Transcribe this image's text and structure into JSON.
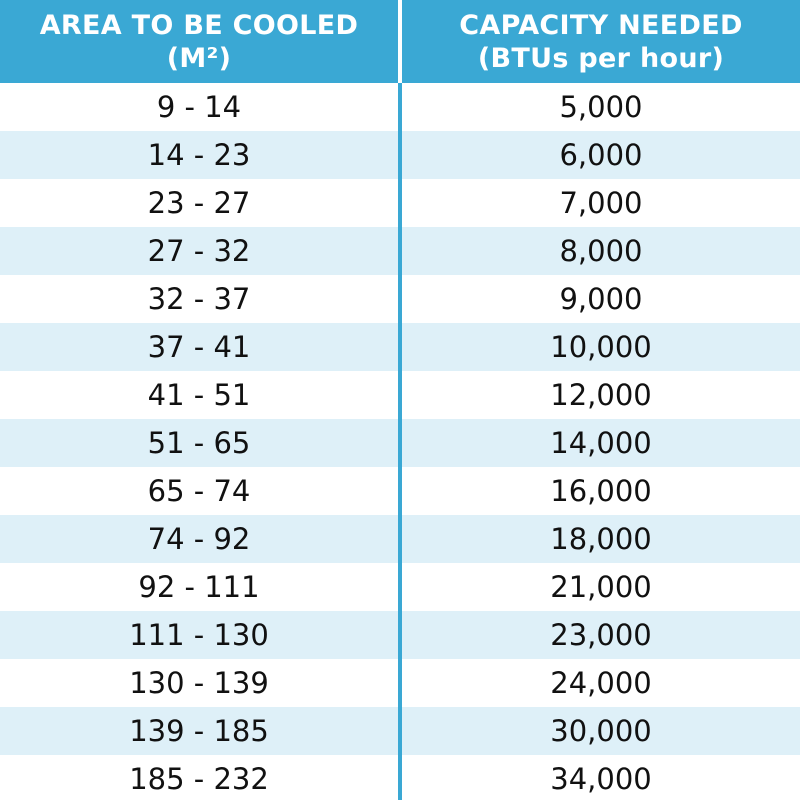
{
  "colors": {
    "accent": "#3aa8d4",
    "stripe": "#def0f8",
    "background": "#ffffff"
  },
  "header": {
    "area_line1": "AREA TO BE COOLED",
    "area_line2": "(M²)",
    "capacity_line1": "CAPACITY NEEDED",
    "capacity_line2": "(BTUs per hour)"
  },
  "rows": [
    {
      "area": "9 - 14",
      "capacity": "5,000"
    },
    {
      "area": "14 - 23",
      "capacity": "6,000"
    },
    {
      "area": "23 - 27",
      "capacity": "7,000"
    },
    {
      "area": "27 - 32",
      "capacity": "8,000"
    },
    {
      "area": "32 - 37",
      "capacity": "9,000"
    },
    {
      "area": "37 - 41",
      "capacity": "10,000"
    },
    {
      "area": "41 - 51",
      "capacity": "12,000"
    },
    {
      "area": "51 - 65",
      "capacity": "14,000"
    },
    {
      "area": "65 - 74",
      "capacity": "16,000"
    },
    {
      "area": "74 - 92",
      "capacity": "18,000"
    },
    {
      "area": "92 - 111",
      "capacity": "21,000"
    },
    {
      "area": "111 - 130",
      "capacity": "23,000"
    },
    {
      "area": "130 - 139",
      "capacity": "24,000"
    },
    {
      "area": "139 - 185",
      "capacity": "30,000"
    },
    {
      "area": "185 - 232",
      "capacity": "34,000"
    }
  ]
}
